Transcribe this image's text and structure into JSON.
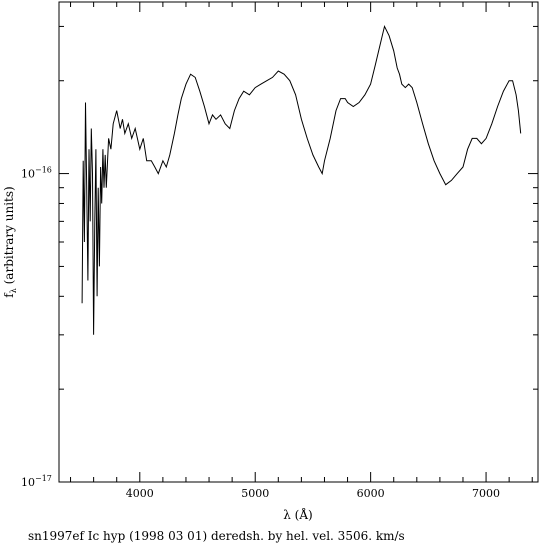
{
  "chart_data": {
    "type": "line",
    "title": "",
    "caption": "sn1997ef Ic hyp (1998 03 01) deredsh. by hel. vel.  3506. km/s",
    "xlabel": "λ (Å)",
    "ylabel": "f",
    "ylabel_sub": "λ",
    "ylabel_rest": " (arbitrary units)",
    "xscale": "linear",
    "yscale": "log",
    "xlim": [
      3300,
      7450
    ],
    "ylim": [
      1e-17,
      3.6e-16
    ],
    "grid": false,
    "x_ticks": [
      {
        "value": 4000,
        "label": "4000"
      },
      {
        "value": 5000,
        "label": "5000"
      },
      {
        "value": 6000,
        "label": "6000"
      },
      {
        "value": 7000,
        "label": "7000"
      }
    ],
    "y_ticks": [
      {
        "value": 1e-17,
        "base": "10",
        "exp": "−17"
      },
      {
        "value": 1e-16,
        "base": "10",
        "exp": "−16"
      }
    ],
    "series": [
      {
        "x": [
          3500,
          3510,
          3520,
          3530,
          3540,
          3550,
          3560,
          3570,
          3580,
          3590,
          3600,
          3610,
          3620,
          3630,
          3640,
          3650,
          3660,
          3670,
          3680,
          3690,
          3700,
          3710,
          3730,
          3750,
          3770,
          3800,
          3830,
          3850,
          3870,
          3900,
          3930,
          3960,
          4000,
          4030,
          4060,
          4100,
          4130,
          4160,
          4200,
          4230,
          4260,
          4300,
          4330,
          4360,
          4400,
          4440,
          4480,
          4520,
          4560,
          4600,
          4630,
          4660,
          4700,
          4740,
          4780,
          4820,
          4860,
          4900,
          4950,
          5000,
          5050,
          5100,
          5150,
          5200,
          5250,
          5300,
          5350,
          5400,
          5450,
          5500,
          5550,
          5580,
          5600,
          5650,
          5700,
          5740,
          5780,
          5800,
          5850,
          5900,
          5950,
          6000,
          6040,
          6080,
          6120,
          6160,
          6200,
          6230,
          6250,
          6270,
          6300,
          6330,
          6360,
          6400,
          6450,
          6500,
          6550,
          6600,
          6650,
          6700,
          6750,
          6800,
          6840,
          6880,
          6920,
          6960,
          7000,
          7050,
          7100,
          7150,
          7200,
          7230,
          7260,
          7280,
          7300
        ],
        "y": [
          3.8e-17,
          1.1e-16,
          6e-17,
          1.7e-16,
          9e-17,
          4.5e-17,
          1.2e-16,
          7e-17,
          1.4e-16,
          1e-16,
          3e-17,
          7e-17,
          1.2e-16,
          4e-17,
          9e-17,
          5e-17,
          1.05e-16,
          8e-17,
          1.2e-16,
          9e-17,
          1.15e-16,
          9e-17,
          1.3e-16,
          1.2e-16,
          1.45e-16,
          1.6e-16,
          1.4e-16,
          1.5e-16,
          1.35e-16,
          1.45e-16,
          1.3e-16,
          1.4e-16,
          1.2e-16,
          1.3e-16,
          1.1e-16,
          1.1e-16,
          1.05e-16,
          1e-16,
          1.1e-16,
          1.05e-16,
          1.15e-16,
          1.35e-16,
          1.55e-16,
          1.75e-16,
          1.95e-16,
          2.1e-16,
          2.05e-16,
          1.85e-16,
          1.65e-16,
          1.45e-16,
          1.55e-16,
          1.5e-16,
          1.55e-16,
          1.45e-16,
          1.4e-16,
          1.6e-16,
          1.75e-16,
          1.85e-16,
          1.8e-16,
          1.9e-16,
          1.95e-16,
          2e-16,
          2.05e-16,
          2.15e-16,
          2.1e-16,
          2e-16,
          1.8e-16,
          1.5e-16,
          1.3e-16,
          1.15e-16,
          1.05e-16,
          1e-16,
          1.1e-16,
          1.3e-16,
          1.6e-16,
          1.75e-16,
          1.75e-16,
          1.7e-16,
          1.65e-16,
          1.7e-16,
          1.8e-16,
          1.95e-16,
          2.25e-16,
          2.6e-16,
          3e-16,
          2.8e-16,
          2.5e-16,
          2.2e-16,
          2.1e-16,
          1.95e-16,
          1.9e-16,
          1.95e-16,
          1.9e-16,
          1.7e-16,
          1.45e-16,
          1.25e-16,
          1.1e-16,
          1e-16,
          9.2e-17,
          9.5e-17,
          1e-16,
          1.05e-16,
          1.2e-16,
          1.3e-16,
          1.3e-16,
          1.25e-16,
          1.3e-16,
          1.45e-16,
          1.65e-16,
          1.85e-16,
          2e-16,
          2e-16,
          1.8e-16,
          1.6e-16,
          1.35e-16
        ]
      }
    ]
  }
}
